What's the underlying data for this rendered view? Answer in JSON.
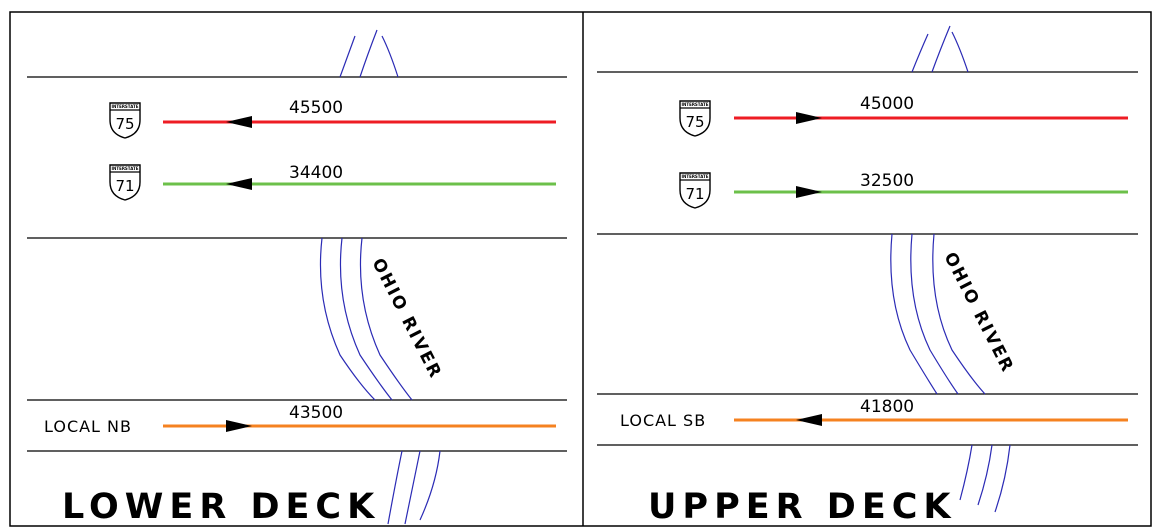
{
  "colors": {
    "red": "#ee1c24",
    "green": "#6cc04a",
    "orange": "#f58220",
    "river": "#2b2bb5",
    "border": "#000000"
  },
  "lower_deck": {
    "title": "LOWER DECK",
    "river_label": "OHIO RIVER",
    "routes": [
      {
        "shield_top": "INTERSTATE",
        "shield_number": "75",
        "volume": "45500",
        "color": "red",
        "direction": "left"
      },
      {
        "shield_top": "INTERSTATE",
        "shield_number": "71",
        "volume": "34400",
        "color": "green",
        "direction": "left"
      },
      {
        "label": "LOCAL NB",
        "volume": "43500",
        "color": "orange",
        "direction": "right"
      }
    ]
  },
  "upper_deck": {
    "title": "UPPER DECK",
    "river_label": "OHIO RIVER",
    "routes": [
      {
        "shield_top": "INTERSTATE",
        "shield_number": "75",
        "volume": "45000",
        "color": "red",
        "direction": "right"
      },
      {
        "shield_top": "INTERSTATE",
        "shield_number": "71",
        "volume": "32500",
        "color": "green",
        "direction": "right"
      },
      {
        "label": "LOCAL SB",
        "volume": "41800",
        "color": "orange",
        "direction": "left"
      }
    ]
  }
}
